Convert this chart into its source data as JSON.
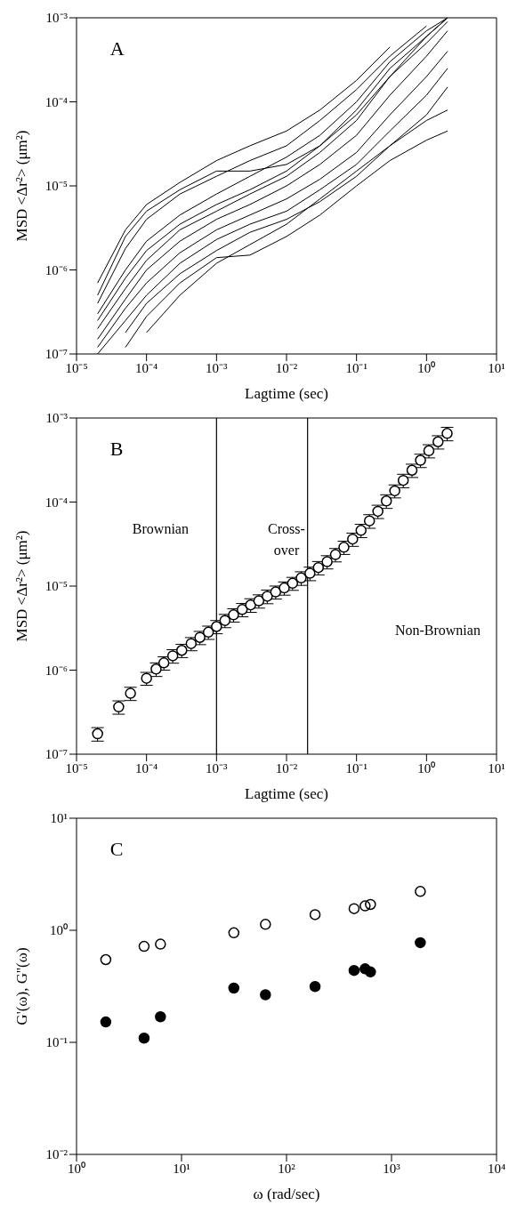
{
  "chart_data": [
    {
      "type": "line",
      "annotations": [
        "A"
      ],
      "xlabel": "Lagtime (sec)",
      "ylabel": "MSD <Δr²> (μm²)",
      "log": "xy",
      "marker": "none",
      "line_style": "solid",
      "xlim": [
        1e-05,
        10
      ],
      "ylim": [
        1e-07,
        0.001
      ],
      "xticks": [
        {
          "value": 1e-05,
          "label": "10⁻⁵"
        },
        {
          "value": 0.0001,
          "label": "10⁻⁴"
        },
        {
          "value": 0.001,
          "label": "10⁻³"
        },
        {
          "value": 0.01,
          "label": "10⁻²"
        },
        {
          "value": 0.1,
          "label": "10⁻¹"
        },
        {
          "value": 1,
          "label": "10⁰"
        },
        {
          "value": 10,
          "label": "10¹"
        }
      ],
      "yticks": [
        {
          "value": 1e-07,
          "label": "10⁻⁷"
        },
        {
          "value": 1e-06,
          "label": "10⁻⁶"
        },
        {
          "value": 1e-05,
          "label": "10⁻⁵"
        },
        {
          "value": 0.0001,
          "label": "10⁻⁴"
        },
        {
          "value": 0.001,
          "label": "10⁻³"
        }
      ],
      "x": [
        2e-05,
        5e-05,
        0.0001,
        0.0003,
        0.001,
        0.003,
        0.01,
        0.03,
        0.1,
        0.3,
        1,
        2
      ],
      "series": [
        {
          "color": "#000000",
          "values": [
            7e-07,
            3e-06,
            6e-06,
            1.1e-05,
            2e-05,
            3e-05,
            4.5e-05,
            8e-05,
            0.00018,
            0.00045,
            null,
            null
          ]
        },
        {
          "color": "#000000",
          "values": [
            5e-07,
            2.5e-06,
            5e-06,
            9e-06,
            1.5e-05,
            1.5e-05,
            1.8e-05,
            3e-05,
            7e-05,
            0.0002,
            0.0006,
            0.001
          ]
        },
        {
          "color": "#000000",
          "values": [
            4e-07,
            1.8e-06,
            4e-06,
            8e-06,
            1.3e-05,
            2e-05,
            3e-05,
            6e-05,
            0.00014,
            0.00035,
            0.0008,
            null
          ]
        },
        {
          "color": "#000000",
          "values": [
            3e-07,
            1e-06,
            2.2e-06,
            4.5e-06,
            8e-06,
            1.3e-05,
            2.2e-05,
            4e-05,
            0.0001,
            0.0003,
            0.0007,
            0.001
          ]
        },
        {
          "color": "#000000",
          "values": [
            2.5e-07,
            8e-07,
            1.7e-06,
            3.5e-06,
            6e-06,
            9e-06,
            1.5e-05,
            3e-05,
            8e-05,
            0.00025,
            0.0006,
            0.001
          ]
        },
        {
          "color": "#000000",
          "values": [
            2e-07,
            6e-07,
            1.3e-06,
            3e-06,
            5e-06,
            8e-06,
            1.3e-05,
            2.5e-05,
            6e-05,
            0.0002,
            0.0005,
            0.0009
          ]
        },
        {
          "color": "#000000",
          "values": [
            1.5e-07,
            4.5e-07,
            1e-06,
            2.2e-06,
            4e-06,
            6e-06,
            1e-05,
            1.8e-05,
            4e-05,
            0.00012,
            0.00035,
            0.0007
          ]
        },
        {
          "color": "#000000",
          "values": [
            1.2e-07,
            3.5e-07,
            7e-07,
            1.6e-06,
            3e-06,
            4.5e-06,
            7e-06,
            1.2e-05,
            2.5e-05,
            7e-05,
            0.0002,
            0.0004
          ]
        },
        {
          "color": "#000000",
          "values": [
            1e-07,
            2.5e-07,
            5e-07,
            1.2e-06,
            2.3e-06,
            3.5e-06,
            5e-06,
            9e-06,
            1.8e-05,
            4.5e-05,
            0.00012,
            0.00025
          ]
        },
        {
          "color": "#000000",
          "values": [
            null,
            1.8e-07,
            4e-07,
            9e-07,
            1.7e-06,
            2.8e-06,
            4e-06,
            6.5e-06,
            1.3e-05,
            3e-05,
            7e-05,
            0.00015
          ]
        },
        {
          "color": "#000000",
          "values": [
            null,
            null,
            1.8e-07,
            5e-07,
            1.2e-06,
            2e-06,
            3.5e-06,
            7e-06,
            1.5e-05,
            3e-05,
            6e-05,
            8e-05
          ]
        },
        {
          "color": "#000000",
          "values": [
            null,
            1.2e-07,
            2.8e-07,
            7e-07,
            1.4e-06,
            1.5e-06,
            2.5e-06,
            4.5e-06,
            1e-05,
            2e-05,
            3.5e-05,
            4.5e-05
          ]
        }
      ]
    },
    {
      "type": "scatter",
      "annotations": [
        "B",
        "Brownian",
        "Cross-\nover",
        "Non-Brownian"
      ],
      "xlabel": "Lagtime (sec)",
      "ylabel": "MSD <Δr²> (μm²)",
      "log": "xy",
      "marker": "circle",
      "color": "#000000",
      "xlim": [
        1e-05,
        10
      ],
      "ylim": [
        1e-07,
        0.001
      ],
      "xticks": [
        {
          "value": 1e-05,
          "label": "10⁻⁵"
        },
        {
          "value": 0.0001,
          "label": "10⁻⁴"
        },
        {
          "value": 0.001,
          "label": "10⁻³"
        },
        {
          "value": 0.01,
          "label": "10⁻²"
        },
        {
          "value": 0.1,
          "label": "10⁻¹"
        },
        {
          "value": 1,
          "label": "10⁰"
        },
        {
          "value": 10,
          "label": "10¹"
        }
      ],
      "yticks": [
        {
          "value": 1e-07,
          "label": "10⁻⁷"
        },
        {
          "value": 1e-06,
          "label": "10⁻⁶"
        },
        {
          "value": 1e-05,
          "label": "10⁻⁵"
        },
        {
          "value": 0.0001,
          "label": "10⁻⁴"
        },
        {
          "value": 0.001,
          "label": "10⁻³"
        }
      ],
      "ref_lines": [
        {
          "axis": "x",
          "value": 0.001
        },
        {
          "axis": "x",
          "value": 0.02
        }
      ],
      "x": [
        2e-05,
        4e-05,
        5.9e-05,
        0.0001,
        0.000137,
        0.000177,
        0.000237,
        0.000319,
        0.000434,
        0.000579,
        0.000765,
        0.001,
        0.00132,
        0.00175,
        0.00233,
        0.00307,
        0.00402,
        0.00531,
        0.007,
        0.0093,
        0.0122,
        0.0162,
        0.0216,
        0.0285,
        0.038,
        0.05,
        0.066,
        0.088,
        0.116,
        0.153,
        0.202,
        0.267,
        0.352,
        0.465,
        0.62,
        0.82,
        1.08,
        1.46,
        1.97
      ],
      "values": [
        1.75e-07,
        3.65e-07,
        5.3e-07,
        8e-07,
        1.03e-06,
        1.22e-06,
        1.48e-06,
        1.72e-06,
        2.07e-06,
        2.45e-06,
        2.83e-06,
        3.3e-06,
        3.9e-06,
        4.55e-06,
        5.26e-06,
        5.97e-06,
        6.67e-06,
        7.57e-06,
        8.51e-06,
        9.5e-06,
        1.08e-05,
        1.25e-05,
        1.42e-05,
        1.66e-05,
        1.95e-05,
        2.37e-05,
        2.9e-05,
        3.62e-05,
        4.6e-05,
        5.97e-05,
        7.76e-05,
        0.000103,
        0.000136,
        0.000181,
        0.000239,
        0.000314,
        0.000408,
        0.000521,
        0.000655
      ],
      "errors": [
        3.2e-08,
        6.6e-08,
        9.5e-08,
        1.4e-07,
        1.9e-07,
        2.2e-07,
        2.7e-07,
        3.1e-07,
        3.7e-07,
        4.4e-07,
        5.1e-07,
        5.9e-07,
        7e-07,
        8.2e-07,
        9.5e-07,
        1.1e-06,
        1.2e-06,
        1.4e-06,
        1.5e-06,
        1.7e-06,
        1.9e-06,
        2.3e-06,
        2.6e-06,
        3e-06,
        3.5e-06,
        4.3e-06,
        5.2e-06,
        6.5e-06,
        8.3e-06,
        1.1e-05,
        1.4e-05,
        1.9e-05,
        2.4e-05,
        3.3e-05,
        4.3e-05,
        5.7e-05,
        7.3e-05,
        9.4e-05,
        0.00012
      ]
    },
    {
      "type": "scatter",
      "annotations": [
        "C"
      ],
      "xlabel": "ω (rad/sec)",
      "ylabel": "G'(ω), G''(ω)",
      "log": "xy",
      "marker": "circle",
      "xlim": [
        1,
        10000
      ],
      "ylim": [
        0.01,
        10
      ],
      "xticks": [
        {
          "value": 1,
          "label": "10⁰"
        },
        {
          "value": 10,
          "label": "10¹"
        },
        {
          "value": 100,
          "label": "10²"
        },
        {
          "value": 1000,
          "label": "10³"
        },
        {
          "value": 10000,
          "label": "10⁴"
        }
      ],
      "yticks": [
        {
          "value": 0.01,
          "label": "10⁻²"
        },
        {
          "value": 0.1,
          "label": "10⁻¹"
        },
        {
          "value": 1,
          "label": "10⁰"
        },
        {
          "value": 10,
          "label": "10¹"
        }
      ],
      "x": [
        1.9,
        4.4,
        6.3,
        31.5,
        63,
        187,
        440,
        560,
        630,
        1880
      ],
      "series": [
        {
          "color": "#000000",
          "values": [
            0.547,
            0.719,
            0.752,
            0.95,
            1.13,
            1.38,
            1.56,
            1.65,
            1.7,
            2.22
          ]
        },
        {
          "color": "#000000",
          "values": [
            0.152,
            0.109,
            0.169,
            0.305,
            0.266,
            0.315,
            0.438,
            0.453,
            0.425,
            0.776
          ]
        }
      ]
    }
  ]
}
